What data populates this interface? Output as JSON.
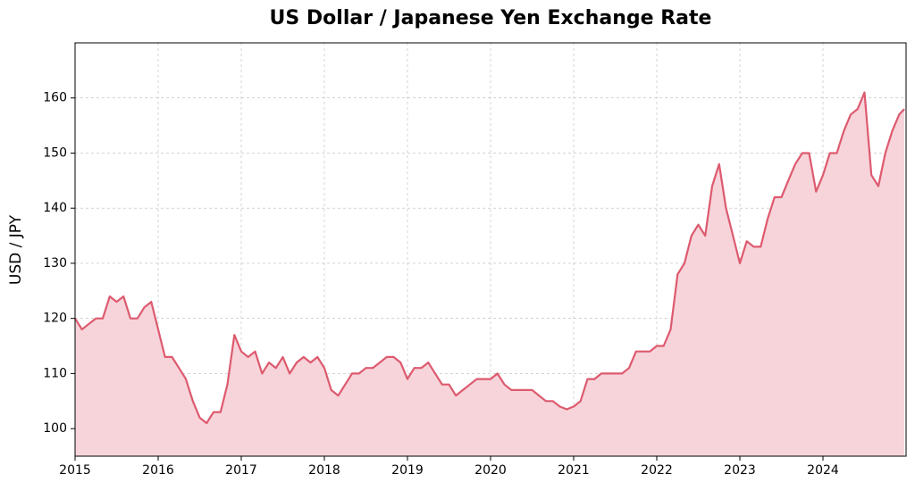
{
  "chart_data": {
    "type": "line",
    "title": "US Dollar / Japanese Yen Exchange Rate",
    "y_label": "USD / JPY",
    "x": [
      2015.0,
      2015.083,
      2015.167,
      2015.25,
      2015.333,
      2015.417,
      2015.5,
      2015.583,
      2015.667,
      2015.75,
      2015.833,
      2015.917,
      2016.0,
      2016.083,
      2016.167,
      2016.25,
      2016.333,
      2016.417,
      2016.5,
      2016.583,
      2016.667,
      2016.75,
      2016.833,
      2016.917,
      2017.0,
      2017.083,
      2017.167,
      2017.25,
      2017.333,
      2017.417,
      2017.5,
      2017.583,
      2017.667,
      2017.75,
      2017.833,
      2017.917,
      2018.0,
      2018.083,
      2018.167,
      2018.25,
      2018.333,
      2018.417,
      2018.5,
      2018.583,
      2018.667,
      2018.75,
      2018.833,
      2018.917,
      2019.0,
      2019.083,
      2019.167,
      2019.25,
      2019.333,
      2019.417,
      2019.5,
      2019.583,
      2019.667,
      2019.75,
      2019.833,
      2019.917,
      2020.0,
      2020.083,
      2020.167,
      2020.25,
      2020.333,
      2020.417,
      2020.5,
      2020.583,
      2020.667,
      2020.75,
      2020.833,
      2020.917,
      2021.0,
      2021.083,
      2021.167,
      2021.25,
      2021.333,
      2021.417,
      2021.5,
      2021.583,
      2021.667,
      2021.75,
      2021.833,
      2021.917,
      2022.0,
      2022.083,
      2022.167,
      2022.25,
      2022.333,
      2022.417,
      2022.5,
      2022.583,
      2022.667,
      2022.75,
      2022.833,
      2022.917,
      2023.0,
      2023.083,
      2023.167,
      2023.25,
      2023.333,
      2023.417,
      2023.5,
      2023.583,
      2023.667,
      2023.75,
      2023.833,
      2023.917,
      2024.0,
      2024.083,
      2024.167,
      2024.25,
      2024.333,
      2024.417,
      2024.5,
      2024.583,
      2024.667,
      2024.75,
      2024.833,
      2024.917,
      2024.98
    ],
    "series": [
      {
        "name": "USD / JPY",
        "color": "#dd5a6e",
        "fill": "#f6d4da",
        "values": [
          120,
          118,
          119,
          120,
          120,
          124,
          123,
          124,
          120,
          120,
          122,
          123,
          118,
          113,
          113,
          111,
          109,
          105,
          102,
          101,
          103,
          103,
          108,
          117,
          114,
          113,
          114,
          110,
          112,
          111,
          113,
          110,
          112,
          113,
          112,
          113,
          111,
          107,
          106,
          108,
          110,
          110,
          111,
          111,
          112,
          113,
          113,
          112,
          109,
          111,
          111,
          112,
          110,
          108,
          108,
          106,
          107,
          108,
          109,
          109,
          109,
          110,
          108,
          107,
          107,
          107,
          107,
          106,
          105,
          105,
          104,
          103.5,
          104,
          105,
          109,
          109,
          110,
          110,
          110,
          110,
          111,
          114,
          114,
          114,
          115,
          115,
          118,
          128,
          130,
          135,
          137,
          135,
          144,
          148,
          140,
          135,
          130,
          134,
          133,
          133,
          138,
          142,
          142,
          145,
          148,
          150,
          150,
          143,
          146,
          150,
          150,
          154,
          157,
          158,
          161,
          146,
          144,
          150,
          154,
          157,
          158
        ]
      }
    ],
    "xlim": [
      2015,
      2025
    ],
    "xticks": [
      2015,
      2016,
      2017,
      2018,
      2019,
      2020,
      2021,
      2022,
      2023,
      2024
    ],
    "ylim": [
      95,
      170
    ],
    "yticks": [
      100,
      110,
      120,
      130,
      140,
      150,
      160
    ],
    "grid": true
  }
}
